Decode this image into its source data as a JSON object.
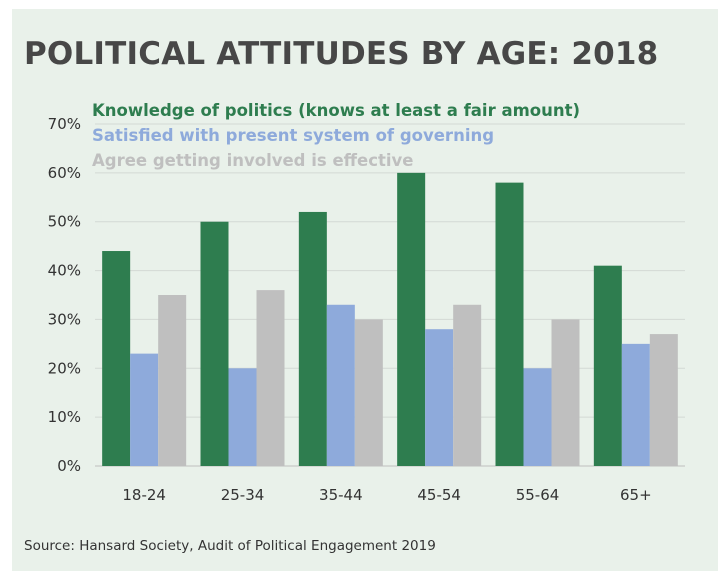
{
  "chart_data": {
    "type": "bar",
    "title": "POLITICAL ATTITUDES BY AGE: 2018",
    "source": "Source: Hansard Society, Audit of Political Engagement 2019",
    "categories": [
      "18-24",
      "25-34",
      "35-44",
      "45-54",
      "55-64",
      "65+"
    ],
    "y_ticks": [
      "0%",
      "10%",
      "20%",
      "30%",
      "40%",
      "50%",
      "60%",
      "70%"
    ],
    "ylim": [
      0,
      70
    ],
    "grid": true,
    "legend_position": "top-left",
    "series": [
      {
        "name": "Knowledge of politics (knows at least a fair amount)",
        "color": "#2e7d4f",
        "values": [
          44,
          50,
          52,
          60,
          58,
          41
        ]
      },
      {
        "name": "Satisfied with present system of governing",
        "color": "#8eaadb",
        "values": [
          23,
          20,
          33,
          28,
          20,
          25
        ]
      },
      {
        "name": "Agree getting involved is effective",
        "color": "#bfbfbf",
        "values": [
          35,
          36,
          30,
          33,
          30,
          27
        ]
      }
    ]
  }
}
